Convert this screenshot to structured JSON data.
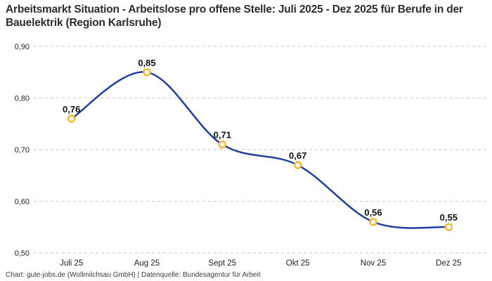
{
  "title": "Arbeitsmarkt Situation - Arbeitslose pro offene Stelle: Juli 2025 - Dez 2025 für Berufe in der Bauelektrik (Region Karlsruhe)",
  "footer": "Chart: gute-jobs.de (Wollmilchsau GmbH) | Datenquelle: Bundesagentur für Arbeit",
  "chart_data": {
    "type": "line",
    "title": "Arbeitsmarkt Situation - Arbeitslose pro offene Stelle: Juli 2025 - Dez 2025 für Berufe in der Bauelektrik (Region Karlsruhe)",
    "categories": [
      "Juli 25",
      "Aug 25",
      "Sept 25",
      "Okt 25",
      "Nov 25",
      "Dez 25"
    ],
    "series": [
      {
        "name": "Arbeitslose pro offene Stelle",
        "values": [
          0.76,
          0.85,
          0.71,
          0.67,
          0.56,
          0.55
        ],
        "data_labels": [
          "0,76",
          "0,85",
          "0,71",
          "0,67",
          "0,56",
          "0,55"
        ]
      }
    ],
    "xlabel": "",
    "ylabel": "",
    "ylim": [
      0.5,
      0.9
    ],
    "yticks": [
      0.5,
      0.6,
      0.7,
      0.8,
      0.9
    ],
    "ytick_labels": [
      "0,50",
      "0,60",
      "0,70",
      "0,80",
      "0,90"
    ],
    "grid": "horizontal-dashed",
    "legend": "none",
    "line_style": "smooth",
    "colors": {
      "line": "#203f9e",
      "marker_stroke": "#f5b82e",
      "marker_fill": "#ffffff",
      "grid": "#cbcbcb",
      "tick_label": "#222222",
      "data_label": "#111111"
    }
  }
}
